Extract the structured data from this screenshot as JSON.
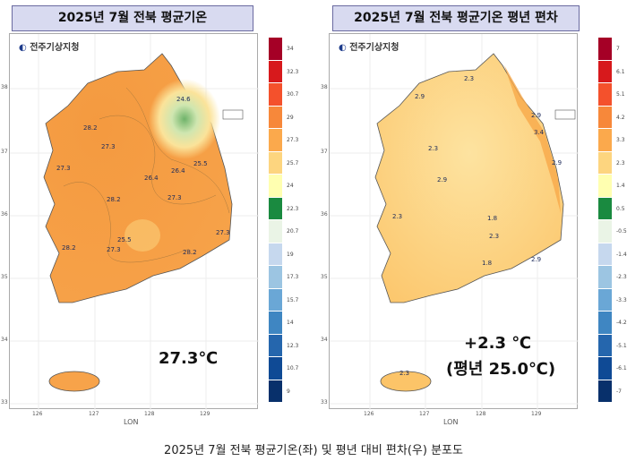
{
  "left": {
    "title": "2025년 7월 전북 평균기온",
    "logo_text": "전주기상지청",
    "value": "27.3℃",
    "colorbar": [
      "34",
      "32.3",
      "30.7",
      "29",
      "27.3",
      "25.7",
      "24",
      "22.3",
      "20.7",
      "19",
      "17.3",
      "15.7",
      "14",
      "12.3",
      "10.7",
      "9"
    ],
    "contour_labels": [
      "24.6",
      "28.2",
      "27.3",
      "27.3",
      "25.5",
      "26.4",
      "26.4",
      "28.2",
      "27.3",
      "28.2",
      "25.5",
      "27.3",
      "28.2",
      "27.3"
    ]
  },
  "right": {
    "title": "2025년 7월 전북 평균기온 평년 편차",
    "logo_text": "전주기상지청",
    "value": "+2.3 ℃",
    "normal": "(평년 25.0℃)",
    "colorbar": [
      "7",
      "6.1",
      "5.1",
      "4.2",
      "3.3",
      "2.3",
      "1.4",
      "0.5",
      "-0.5",
      "-1.4",
      "-2.3",
      "-3.3",
      "-4.2",
      "-5.1",
      "-6.1",
      "-7"
    ],
    "contour_labels": [
      "2.9",
      "2.3",
      "2.9",
      "3.4",
      "2.3",
      "2.9",
      "2.9",
      "1.8",
      "2.3",
      "2.3",
      "2.9",
      "1.8",
      "2.3"
    ]
  },
  "axes": {
    "xlabel": "LON",
    "xticks": [
      "126",
      "127",
      "128",
      "129"
    ],
    "yticks": [
      "38",
      "37",
      "36",
      "35",
      "34",
      "33"
    ]
  },
  "colors": {
    "scale": [
      "#a50026",
      "#d7191c",
      "#f4512c",
      "#f7883a",
      "#fba94c",
      "#fdd57f",
      "#ffffb0",
      "#1a8a40",
      "#eaf4e6",
      "#c6d8ee",
      "#9cc5e2",
      "#6aa7d6",
      "#3f86c2",
      "#2566ad",
      "#0f4a95",
      "#08306b"
    ]
  },
  "caption": "2025년 7월 전북 평균기온(좌) 및 평년 대비 편차(우) 분포도"
}
